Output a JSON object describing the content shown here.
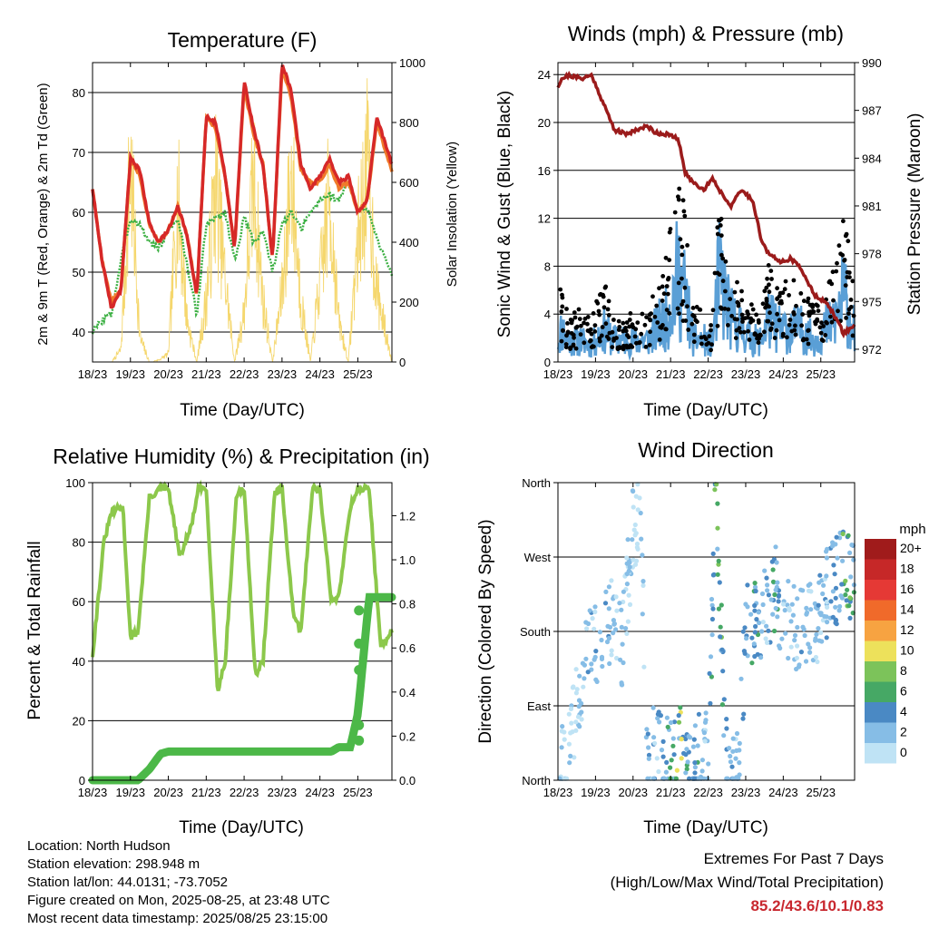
{
  "time_ticks": [
    "18/23",
    "19/23",
    "20/23",
    "21/23",
    "22/23",
    "23/23",
    "24/23",
    "25/23"
  ],
  "xlabel": "Time (Day/UTC)",
  "colors": {
    "temp": "#d62828",
    "temp9m": "#f07a2a",
    "dew": "#3cb043",
    "solar": "#f5d76e",
    "gust": "#000000",
    "wind": "#5a9fd6",
    "pressure": "#9b1b1b",
    "rh": "#8cc84b",
    "rain": "#4cb848"
  },
  "charts": {
    "temperature": {
      "title": "Temperature (F)",
      "ylabel_left": "2m & 9m T (Red, Orange) & 2m Td (Green)",
      "ylabel_right": "Solar Insolation (Yellow)",
      "yticks_left": [
        "40",
        "50",
        "60",
        "70",
        "80"
      ],
      "yticks_right": [
        "0",
        "200",
        "400",
        "600",
        "800",
        "1000"
      ]
    },
    "winds": {
      "title": "Winds (mph) & Pressure (mb)",
      "ylabel_left": "Sonic Wind & Gust (Blue, Black)",
      "ylabel_right": "Station Pressure (Maroon)",
      "yticks_left": [
        "0",
        "4",
        "8",
        "12",
        "16",
        "20",
        "24"
      ],
      "yticks_right": [
        "972",
        "975",
        "978",
        "981",
        "984",
        "987",
        "990"
      ]
    },
    "humidity": {
      "title": "Relative Humidity (%) & Precipitation (in)",
      "ylabel_left": "Percent & Total Rainfall",
      "yticks_left": [
        "0",
        "20",
        "40",
        "60",
        "80",
        "100"
      ],
      "yticks_right": [
        "0.0",
        "0.2",
        "0.4",
        "0.6",
        "0.8",
        "1.0",
        "1.2"
      ]
    },
    "direction": {
      "title": "Wind Direction",
      "ylabel_left": "Direction (Colored By Speed)",
      "yticks_left": [
        "North",
        "East",
        "South",
        "West",
        "North"
      ],
      "legend_title": "mph",
      "legend_labels": [
        "20+",
        "18",
        "16",
        "14",
        "12",
        "10",
        "8",
        "6",
        "4",
        "2",
        "0"
      ],
      "legend_colors": [
        "#a01b1b",
        "#c62828",
        "#e53935",
        "#f06a2a",
        "#f7a341",
        "#ede15b",
        "#7cc35a",
        "#46a865",
        "#4a89c4",
        "#86bde6",
        "#bfe3f5"
      ]
    }
  },
  "chart_data": [
    {
      "type": "line",
      "title": "Temperature (F)",
      "x": [
        0,
        0.25,
        0.5,
        0.75,
        1,
        1.25,
        1.5,
        1.75,
        2,
        2.25,
        2.5,
        2.75,
        3,
        3.25,
        3.5,
        3.75,
        4,
        4.25,
        4.5,
        4.75,
        5,
        5.25,
        5.5,
        5.75,
        6,
        6.25,
        6.5,
        6.75,
        7,
        7.25,
        7.5,
        7.9
      ],
      "series": [
        {
          "values": [
            64,
            52,
            44,
            47,
            69,
            67,
            58,
            55,
            57,
            61,
            56,
            46,
            76,
            75,
            66,
            54,
            82,
            74,
            68,
            52,
            85,
            80,
            68,
            64,
            66,
            69,
            65,
            66,
            60,
            62,
            76,
            68
          ]
        },
        {
          "values": [
            64,
            52,
            45,
            47,
            69,
            66,
            58,
            55,
            57,
            61,
            56,
            46,
            76,
            74,
            66,
            54,
            81,
            73,
            68,
            52,
            84,
            79,
            67,
            65,
            65,
            68,
            64,
            65,
            60,
            62,
            75,
            67
          ]
        },
        {
          "values": [
            40,
            42,
            43,
            52,
            59,
            58,
            55,
            54,
            57,
            59,
            51,
            43,
            58,
            59,
            60,
            52,
            59,
            55,
            57,
            50,
            58,
            60,
            57,
            60,
            62,
            63,
            62,
            65,
            60,
            61,
            56,
            49
          ]
        },
        {
          "values": [
            0,
            0,
            0,
            60,
            980,
            120,
            0,
            10,
            40,
            820,
            200,
            0,
            300,
            880,
            400,
            0,
            250,
            900,
            300,
            0,
            350,
            940,
            300,
            0,
            400,
            820,
            200,
            0,
            600,
            960,
            350,
            0
          ]
        }
      ],
      "ylim_left": [
        35,
        85
      ],
      "ylim_right": [
        0,
        1000
      ]
    },
    {
      "type": "scatter",
      "title": "Winds (mph) & Pressure (mb)",
      "x": [
        0,
        0.1,
        0.3,
        0.6,
        0.9,
        1.2,
        1.5,
        1.8,
        2.1,
        2.4,
        2.6,
        2.9,
        3.2,
        3.4,
        3.6,
        3.9,
        4.1,
        4.3,
        4.6,
        4.9,
        5.2,
        5.4,
        5.6,
        5.9,
        6.2,
        6.5,
        6.8,
        7.1,
        7.4,
        7.6,
        7.9
      ],
      "series": [
        {
          "values": [
            988.5,
            989.0,
            989.2,
            989.0,
            989.2,
            987.5,
            985.8,
            985.5,
            985.8,
            986.0,
            985.6,
            985.5,
            985.2,
            983.0,
            982.5,
            982.0,
            982.8,
            982.0,
            981.0,
            982.0,
            981.3,
            979.0,
            978.0,
            977.5,
            977.7,
            977.0,
            975.5,
            975.0,
            974.0,
            973.0,
            973.5
          ]
        },
        {
          "values": [
            2,
            3,
            2,
            2,
            1.5,
            3,
            2,
            2,
            2,
            2,
            3,
            4,
            8,
            6,
            2,
            2,
            1.5,
            8,
            4,
            3,
            2,
            2,
            4,
            3,
            3,
            3,
            2,
            3,
            4,
            6,
            3
          ]
        },
        {
          "values": [
            8,
            5,
            3,
            4,
            3,
            6,
            3,
            3,
            4,
            4,
            5,
            8,
            14,
            10,
            4,
            4,
            3,
            12,
            7,
            5,
            4,
            4,
            7,
            6,
            6,
            5,
            4,
            5,
            7,
            12,
            5
          ]
        }
      ],
      "ylim_left": [
        0,
        25
      ],
      "ylim_right": [
        971.2,
        990
      ]
    },
    {
      "type": "line",
      "title": "Relative Humidity (%) & Precipitation (in)",
      "x": [
        0,
        0.3,
        0.5,
        0.8,
        1,
        1.2,
        1.5,
        1.8,
        2,
        2.3,
        2.6,
        2.8,
        3,
        3.3,
        3.5,
        3.8,
        4,
        4.3,
        4.5,
        4.8,
        5,
        5.3,
        5.5,
        5.8,
        6,
        6.3,
        6.5,
        6.8,
        7,
        7.3,
        7.6,
        7.9
      ],
      "series": [
        {
          "values": [
            42,
            80,
            90,
            92,
            48,
            50,
            95,
            98,
            98,
            75,
            85,
            98,
            98,
            30,
            40,
            96,
            98,
            35,
            40,
            96,
            98,
            55,
            50,
            98,
            98,
            60,
            62,
            92,
            98,
            98,
            45,
            50
          ]
        },
        {
          "values": [
            0,
            0,
            0,
            0,
            0,
            0,
            0.05,
            0.12,
            0.13,
            0.13,
            0.13,
            0.13,
            0.13,
            0.13,
            0.13,
            0.13,
            0.13,
            0.13,
            0.13,
            0.13,
            0.13,
            0.13,
            0.13,
            0.13,
            0.13,
            0.13,
            0.15,
            0.15,
            0.3,
            0.83,
            0.83,
            0.83
          ]
        }
      ],
      "ylim_left": [
        0,
        100
      ],
      "ylim_right": [
        0,
        1.35
      ]
    },
    {
      "type": "scatter",
      "title": "Wind Direction",
      "x": [
        0.1,
        0.3,
        0.5,
        0.8,
        1.0,
        1.3,
        1.5,
        1.7,
        2.0,
        2.2,
        2.4,
        2.6,
        2.8,
        3.0,
        3.3,
        3.5,
        3.7,
        4.0,
        4.2,
        4.5,
        4.8,
        5.0,
        5.3,
        5.5,
        5.8,
        6.0,
        6.3,
        6.5,
        6.8,
        7.0,
        7.3,
        7.6,
        7.9
      ],
      "series": [
        {
          "values": [
            20,
            45,
            90,
            150,
            170,
            180,
            200,
            160,
            300,
            330,
            20,
            40,
            30,
            15,
            40,
            20,
            25,
            30,
            350,
            10,
            15,
            180,
            190,
            200,
            230,
            200,
            180,
            200,
            180,
            210,
            240,
            250,
            230
          ]
        },
        {
          "values": [
            2,
            1,
            1,
            3,
            3,
            3,
            2,
            2,
            1,
            2,
            3,
            3,
            4,
            7,
            9,
            3,
            5,
            2,
            8,
            4,
            2,
            4,
            5,
            3,
            5,
            2,
            2,
            3,
            2,
            3,
            3,
            7,
            6
          ]
        }
      ],
      "ylim": [
        0,
        360
      ]
    }
  ],
  "info": {
    "location": "Location: North Hudson",
    "elevation": "Station elevation: 298.948 m",
    "latlon": "Station lat/lon: 44.0131; -73.7052",
    "created": "Figure created on Mon, 2025-08-25, at 23:48 UTC",
    "recent": "Most recent data timestamp: 2025/08/25 23:15:00"
  },
  "extremes": {
    "line1": "Extremes For Past 7 Days",
    "line2": "(High/Low/Max Wind/Total Precipitation)",
    "values": "85.2/43.6/10.1/0.83"
  }
}
